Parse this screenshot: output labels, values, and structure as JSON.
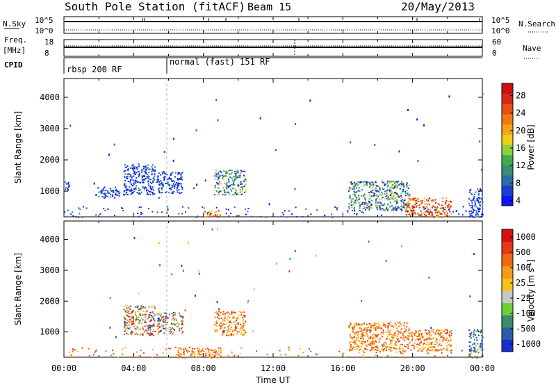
{
  "header": {
    "station": "South Pole Station (fitACF)",
    "beam": "Beam 15",
    "date": "20/May/2013"
  },
  "top_panels": {
    "nsky_label": "N.Sky",
    "nsky_ticks": [
      "10^5",
      "10^0"
    ],
    "nsearch_label": "N.Search",
    "nsearch_ticks": [
      "10^5",
      "10^0"
    ],
    "freq_label": "Freq.",
    "freq_unit": "[MHz]",
    "freq_ticks": [
      "18",
      "8"
    ],
    "nave_label": "Nave",
    "nave_ticks": [
      "60",
      "0"
    ],
    "cpid_label": "CPID",
    "cpid_modes": [
      "rbsp 200 RF",
      "normal (fast) 151 RF"
    ]
  },
  "power_colorbar": {
    "title": "Power [dB]",
    "ticks": [
      "28",
      "24",
      "20",
      "16",
      "12",
      "8",
      "4"
    ],
    "colors": [
      "#0a16ff",
      "#1a3fcf",
      "#2a6fa8",
      "#3a8f6f",
      "#3fae4a",
      "#8fcf3a",
      "#e8d21a",
      "#f5a21a",
      "#f07a12",
      "#e8501a",
      "#d8281a",
      "#cc1010"
    ]
  },
  "velocity_colorbar": {
    "title": "Velocity [m s",
    "title_exp": "-1",
    "title_end": "]",
    "ticks": [
      "1000",
      "500",
      "100",
      "25",
      "-25",
      "-100",
      "-500",
      "-1000"
    ],
    "colors": [
      "#1a2fcf",
      "#2a5fa8",
      "#3a8f6f",
      "#6fcf3a",
      "#c8c8c8",
      "#f5c21a",
      "#f59a1a",
      "#f06a12",
      "#e8381a",
      "#d81010"
    ]
  },
  "chart_data": [
    {
      "type": "heatmap",
      "title": "Power",
      "ylabel": "Slant Range [km]",
      "xlabel": "",
      "ylim": [
        180,
        4600
      ],
      "xlim": [
        0,
        24
      ],
      "yticks": [
        "4000",
        "3000",
        "2000",
        "1000"
      ],
      "ytick_values": [
        4000,
        3000,
        2000,
        1000
      ],
      "blobs": [
        {
          "x0": 0.0,
          "x1": 0.25,
          "y0": 1000,
          "y1": 1350,
          "level": "low"
        },
        {
          "x0": 1.8,
          "x1": 3.2,
          "y0": 800,
          "y1": 1150,
          "level": "low"
        },
        {
          "x0": 3.4,
          "x1": 5.2,
          "y0": 900,
          "y1": 1900,
          "level": "low"
        },
        {
          "x0": 5.3,
          "x1": 6.8,
          "y0": 950,
          "y1": 1650,
          "level": "low"
        },
        {
          "x0": 8.6,
          "x1": 10.4,
          "y0": 900,
          "y1": 1700,
          "level": "mid"
        },
        {
          "x0": 16.3,
          "x1": 19.8,
          "y0": 400,
          "y1": 1350,
          "level": "mid"
        },
        {
          "x0": 19.5,
          "x1": 22.2,
          "y0": 180,
          "y1": 800,
          "level": "high"
        },
        {
          "x0": 8.0,
          "x1": 9.0,
          "y0": 180,
          "y1": 400,
          "level": "high"
        },
        {
          "x0": 23.2,
          "x1": 24.0,
          "y0": 180,
          "y1": 1100,
          "level": "low"
        }
      ]
    },
    {
      "type": "heatmap",
      "title": "Velocity",
      "ylabel": "Slant Range [km]",
      "xlabel": "Time UT",
      "ylim": [
        180,
        4600
      ],
      "xlim": [
        0,
        24
      ],
      "yticks": [
        "4000",
        "3000",
        "2000",
        "1000"
      ],
      "ytick_values": [
        4000,
        3000,
        2000,
        1000
      ],
      "xticks": [
        "00:00",
        "04:00",
        "08:00",
        "12:00",
        "16:00",
        "20:00",
        "00:00"
      ],
      "xtick_values": [
        0,
        4,
        8,
        12,
        16,
        20,
        24
      ],
      "blobs": [
        {
          "x0": 3.4,
          "x1": 5.2,
          "y0": 900,
          "y1": 1900,
          "level": "mixed"
        },
        {
          "x0": 5.3,
          "x1": 6.8,
          "y0": 950,
          "y1": 1650,
          "level": "mixed"
        },
        {
          "x0": 8.6,
          "x1": 10.4,
          "y0": 900,
          "y1": 1700,
          "level": "neg"
        },
        {
          "x0": 16.3,
          "x1": 19.8,
          "y0": 400,
          "y1": 1350,
          "level": "neg"
        },
        {
          "x0": 19.8,
          "x1": 22.2,
          "y0": 400,
          "y1": 1100,
          "level": "neg"
        },
        {
          "x0": 6.5,
          "x1": 9.0,
          "y0": 180,
          "y1": 500,
          "level": "neg"
        },
        {
          "x0": 23.2,
          "x1": 24.0,
          "y0": 180,
          "y1": 1100,
          "level": "pos"
        }
      ]
    }
  ]
}
